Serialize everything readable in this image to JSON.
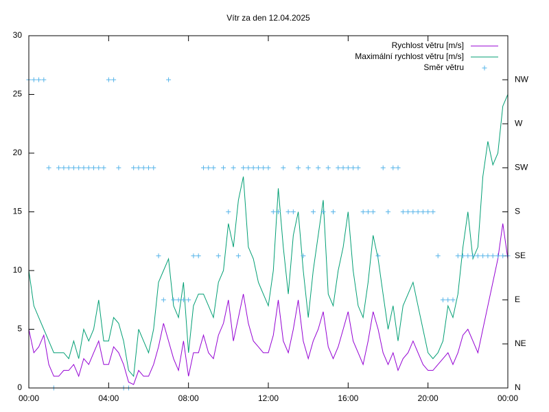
{
  "chart_data": {
    "type": "line",
    "title": "Vítr za den 12.04.2025",
    "x": [
      0,
      0.25,
      0.5,
      0.75,
      1,
      1.25,
      1.5,
      1.75,
      2,
      2.25,
      2.5,
      2.75,
      3,
      3.25,
      3.5,
      3.75,
      4,
      4.25,
      4.5,
      4.75,
      5,
      5.25,
      5.5,
      5.75,
      6,
      6.25,
      6.5,
      6.75,
      7,
      7.25,
      7.5,
      7.75,
      8,
      8.25,
      8.5,
      8.75,
      9,
      9.25,
      9.5,
      9.75,
      10,
      10.25,
      10.5,
      10.75,
      11,
      11.25,
      11.5,
      11.75,
      12,
      12.25,
      12.5,
      12.75,
      13,
      13.25,
      13.5,
      13.75,
      14,
      14.25,
      14.5,
      14.75,
      15,
      15.25,
      15.5,
      15.75,
      16,
      16.25,
      16.5,
      16.75,
      17,
      17.25,
      17.5,
      17.75,
      18,
      18.25,
      18.5,
      18.75,
      19,
      19.25,
      19.5,
      19.75,
      20,
      20.25,
      20.5,
      20.75,
      21,
      21.25,
      21.5,
      21.75,
      22,
      22.25,
      22.5,
      22.75,
      23,
      23.25,
      23.5,
      23.75,
      24
    ],
    "series": [
      {
        "name": "Rychlost větru [m/s]",
        "color": "#9400d3",
        "style": "line",
        "values": [
          5,
          3,
          3.5,
          4.5,
          2,
          1,
          1,
          1.5,
          1.5,
          2,
          1,
          2.5,
          2,
          3,
          4,
          2,
          2,
          3.5,
          3,
          2,
          0.5,
          0.3,
          1.5,
          1,
          1,
          2,
          3.5,
          5.5,
          4,
          2.5,
          1.5,
          4,
          1,
          3,
          3,
          4.5,
          3,
          2.5,
          4.5,
          5.5,
          7.5,
          4,
          6,
          8,
          5.5,
          4,
          3.5,
          3,
          3,
          4.5,
          7.5,
          4,
          3,
          5,
          7.5,
          4,
          2.5,
          4,
          5,
          6.5,
          3.5,
          2.5,
          3.5,
          5,
          6.5,
          4,
          3,
          2,
          4,
          6.5,
          5,
          3,
          2,
          3,
          1.5,
          2.5,
          3,
          4,
          3,
          2,
          1.5,
          1.5,
          2,
          2.5,
          3,
          2,
          3,
          4.5,
          5,
          4,
          3,
          5,
          7,
          9,
          11,
          14,
          11
        ]
      },
      {
        "name": "Maximální rychlost větru [m/s]",
        "color": "#009e73",
        "style": "line",
        "values": [
          10,
          7,
          6,
          5,
          4,
          3,
          3,
          3,
          2.5,
          4,
          2.5,
          5,
          4,
          5,
          7.5,
          4,
          4,
          6,
          5.5,
          4,
          1.5,
          1,
          5,
          4,
          3,
          5,
          9,
          10,
          11,
          7,
          6,
          9,
          3,
          7,
          8,
          8,
          7,
          6,
          9,
          10,
          14,
          12,
          16,
          18,
          12,
          11,
          9,
          8,
          7,
          10,
          17,
          12,
          8,
          13,
          15,
          10,
          6,
          10,
          13,
          16,
          8,
          7,
          10,
          12,
          15,
          10,
          7,
          6,
          9,
          13,
          11,
          8,
          5,
          7,
          4,
          7,
          8,
          9,
          7,
          5,
          3,
          2.5,
          3,
          4,
          7,
          6,
          8,
          12,
          15,
          11,
          12,
          18,
          21,
          19,
          20,
          24,
          25
        ]
      },
      {
        "name": "Směr větru",
        "color": "#56b4e9",
        "style": "points",
        "axis": "y2",
        "values": [
          7,
          7,
          7,
          7,
          5,
          0,
          5,
          5,
          5,
          5,
          5,
          5,
          5,
          5,
          5,
          5,
          7,
          7,
          5,
          0,
          0,
          5,
          5,
          5,
          5,
          5,
          3,
          2,
          7,
          2,
          2,
          2,
          2,
          3,
          3,
          5,
          5,
          5,
          3,
          5,
          4,
          5,
          3,
          5,
          5,
          5,
          5,
          5,
          5,
          4,
          4,
          5,
          4,
          4,
          5,
          3,
          5,
          4,
          5,
          4,
          5,
          4,
          5,
          5,
          5,
          5,
          5,
          4,
          4,
          4,
          3,
          5,
          4,
          5,
          5,
          4,
          4,
          4,
          4,
          4,
          4,
          4,
          3,
          2,
          2,
          2,
          3,
          3,
          3,
          3,
          3,
          3,
          3,
          3,
          3,
          3,
          3
        ]
      }
    ],
    "xlim": [
      0,
      24
    ],
    "xticks": [
      {
        "value": 0,
        "label": "00:00"
      },
      {
        "value": 4,
        "label": "04:00"
      },
      {
        "value": 8,
        "label": "08:00"
      },
      {
        "value": 12,
        "label": "12:00"
      },
      {
        "value": 16,
        "label": "16:00"
      },
      {
        "value": 20,
        "label": "20:00"
      },
      {
        "value": 24,
        "label": "00:00"
      }
    ],
    "ylim": [
      0,
      30
    ],
    "yticks": [
      0,
      5,
      10,
      15,
      20,
      25,
      30
    ],
    "y2lim": [
      0,
      8
    ],
    "y2ticks": [
      {
        "value": 0,
        "label": "N"
      },
      {
        "value": 1,
        "label": "NE"
      },
      {
        "value": 2,
        "label": "E"
      },
      {
        "value": 3,
        "label": "SE"
      },
      {
        "value": 4,
        "label": "S"
      },
      {
        "value": 5,
        "label": "SW"
      },
      {
        "value": 6,
        "label": "W"
      },
      {
        "value": 7,
        "label": "NW"
      }
    ],
    "legend": "top-right"
  }
}
